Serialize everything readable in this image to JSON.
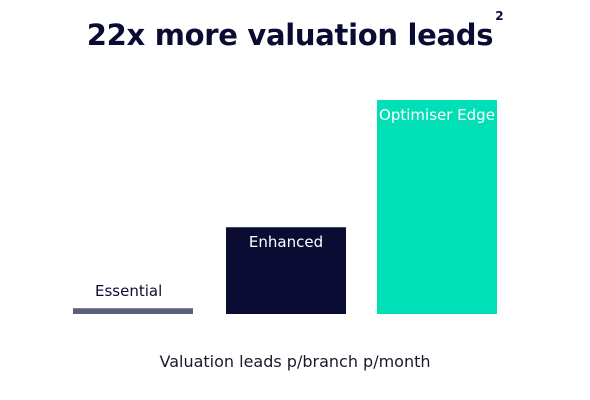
{
  "chart_data": {
    "type": "bar",
    "title": "22x more valuation leads",
    "title_superscript": "2",
    "xlabel": "Valuation leads p/branch p/month",
    "ylabel": "",
    "categories": [
      "Essential",
      "Enhanced",
      "Optimiser Edge"
    ],
    "values": [
      1,
      15,
      37
    ],
    "colors": [
      "#5c5f7c",
      "#0b0c33",
      "#00dfb6"
    ],
    "label_colors": [
      "#0b0c33",
      "#ffffff",
      "#ffffff"
    ],
    "grid": false,
    "legend": "none"
  }
}
